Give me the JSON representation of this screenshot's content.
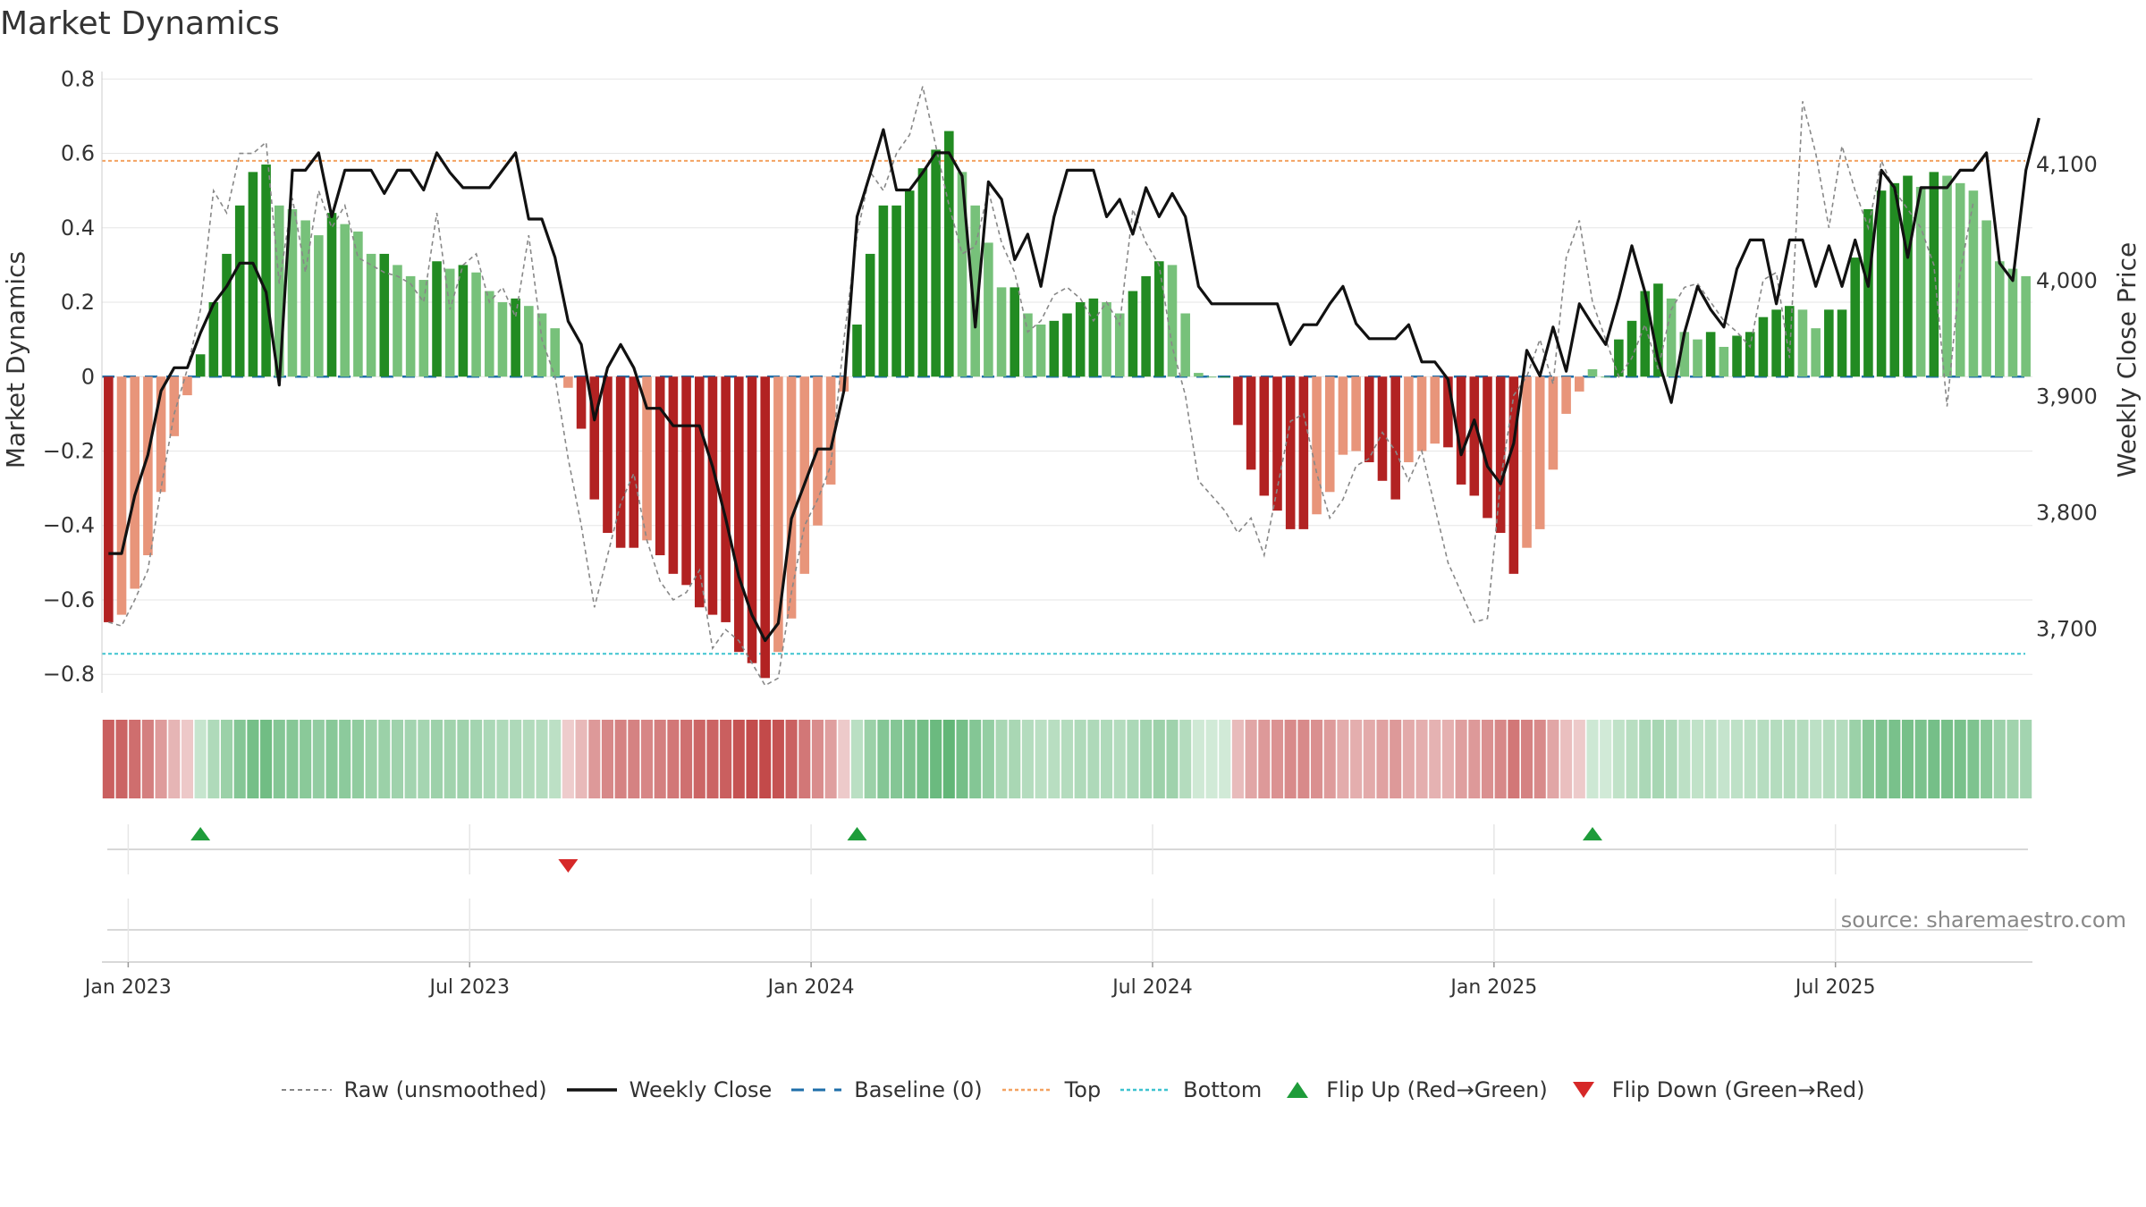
{
  "chart_data": {
    "type": "bar+line",
    "title": "Market Dynamics",
    "ylabel_left": "Market Dynamics",
    "ylabel_right": "Weekly Close Price",
    "ylim_left": [
      -0.85,
      0.82
    ],
    "ylim_right": [
      3645,
      4180
    ],
    "yticks_left": [
      0.8,
      0.6,
      0.4,
      0.2,
      0,
      -0.2,
      -0.4,
      -0.6,
      -0.8
    ],
    "yticks_left_labels": [
      "0.8",
      "0.6",
      "0.4",
      "0.2",
      "0",
      "−0.2",
      "−0.4",
      "−0.6",
      "−0.8"
    ],
    "yticks_right": [
      4100,
      4000,
      3900,
      3800,
      3700
    ],
    "yticks_right_labels": [
      "4,100",
      "4,000",
      "3,900",
      "3,800",
      "3,700"
    ],
    "xticks": [
      {
        "week": 2,
        "label": "Jan 2023"
      },
      {
        "week": 28,
        "label": "Jul 2023"
      },
      {
        "week": 54,
        "label": "Jan 2024"
      },
      {
        "week": 80,
        "label": "Jul 2024"
      },
      {
        "week": 106,
        "label": "Jan 2025"
      },
      {
        "week": 132,
        "label": "Jul 2025"
      }
    ],
    "top_level": 0.58,
    "bottom_level": -0.745,
    "baseline": 0,
    "dynamics": [
      -0.66,
      -0.64,
      -0.57,
      -0.48,
      -0.31,
      -0.16,
      -0.05,
      0.06,
      0.2,
      0.33,
      0.46,
      0.55,
      0.57,
      0.46,
      0.45,
      0.42,
      0.38,
      0.44,
      0.41,
      0.39,
      0.33,
      0.33,
      0.3,
      0.27,
      0.26,
      0.31,
      0.29,
      0.3,
      0.28,
      0.23,
      0.2,
      0.21,
      0.19,
      0.17,
      0.13,
      -0.03,
      -0.14,
      -0.33,
      -0.42,
      -0.46,
      -0.46,
      -0.44,
      -0.48,
      -0.53,
      -0.56,
      -0.62,
      -0.64,
      -0.66,
      -0.74,
      -0.77,
      -0.81,
      -0.74,
      -0.65,
      -0.53,
      -0.4,
      -0.29,
      -0.04,
      0.14,
      0.33,
      0.46,
      0.46,
      0.5,
      0.56,
      0.61,
      0.66,
      0.55,
      0.46,
      0.36,
      0.24,
      0.24,
      0.17,
      0.14,
      0.15,
      0.17,
      0.2,
      0.21,
      0.2,
      0.17,
      0.23,
      0.27,
      0.31,
      0.3,
      0.17,
      0.01,
      0,
      0,
      -0.13,
      -0.25,
      -0.32,
      -0.36,
      -0.41,
      -0.41,
      -0.37,
      -0.31,
      -0.21,
      -0.2,
      -0.23,
      -0.28,
      -0.33,
      -0.23,
      -0.2,
      -0.18,
      -0.19,
      -0.29,
      -0.32,
      -0.38,
      -0.42,
      -0.53,
      -0.46,
      -0.41,
      -0.25,
      -0.1,
      -0.04,
      0.02,
      0,
      0.1,
      0.15,
      0.23,
      0.25,
      0.21,
      0.12,
      0.1,
      0.12,
      0.08,
      0.11,
      0.12,
      0.16,
      0.18,
      0.19,
      0.18,
      0.13,
      0.18,
      0.18,
      0.32,
      0.45,
      0.5,
      0.52,
      0.54,
      0.51,
      0.55,
      0.54,
      0.52,
      0.5,
      0.42,
      0.31,
      0.29,
      0.27
    ],
    "raw": [
      -0.66,
      -0.67,
      -0.6,
      -0.52,
      -0.3,
      -0.1,
      0.02,
      0.18,
      0.5,
      0.44,
      0.6,
      0.6,
      0.63,
      0.25,
      0.48,
      0.28,
      0.5,
      0.4,
      0.46,
      0.32,
      0.3,
      0.28,
      0.27,
      0.25,
      0.2,
      0.44,
      0.18,
      0.3,
      0.33,
      0.2,
      0.24,
      0.16,
      0.38,
      0.1,
      0.0,
      -0.22,
      -0.4,
      -0.62,
      -0.48,
      -0.34,
      -0.26,
      -0.44,
      -0.55,
      -0.6,
      -0.58,
      -0.52,
      -0.73,
      -0.68,
      -0.71,
      -0.77,
      -0.83,
      -0.81,
      -0.58,
      -0.4,
      -0.33,
      -0.24,
      0.1,
      0.38,
      0.55,
      0.5,
      0.6,
      0.65,
      0.78,
      0.62,
      0.46,
      0.33,
      0.35,
      0.5,
      0.36,
      0.28,
      0.12,
      0.15,
      0.22,
      0.24,
      0.21,
      0.15,
      0.2,
      0.14,
      0.45,
      0.36,
      0.3,
      0.08,
      -0.05,
      -0.28,
      -0.32,
      -0.36,
      -0.42,
      -0.38,
      -0.48,
      -0.3,
      -0.12,
      -0.1,
      -0.26,
      -0.38,
      -0.33,
      -0.24,
      -0.22,
      -0.15,
      -0.2,
      -0.28,
      -0.2,
      -0.35,
      -0.5,
      -0.58,
      -0.66,
      -0.65,
      -0.28,
      -0.05,
      0.0,
      0.1,
      -0.02,
      0.32,
      0.42,
      0.2,
      0.1,
      0.0,
      0.05,
      0.14,
      0.02,
      0.18,
      0.24,
      0.25,
      0.2,
      0.15,
      0.12,
      0.08,
      0.26,
      0.28,
      0.05,
      0.74,
      0.6,
      0.4,
      0.62,
      0.5,
      0.4,
      0.58,
      0.5,
      0.45,
      0.4,
      0.3,
      -0.08,
      0.28,
      0.47
    ],
    "close": [
      3765,
      3765,
      3815,
      3850,
      3905,
      3925,
      3925,
      3955,
      3980,
      3995,
      4015,
      4015,
      3990,
      3910,
      4095,
      4095,
      4110,
      4055,
      4095,
      4095,
      4095,
      4075,
      4095,
      4095,
      4078,
      4110,
      4093,
      4080,
      4080,
      4080,
      4095,
      4110,
      4053,
      4053,
      4020,
      3965,
      3945,
      3880,
      3925,
      3945,
      3925,
      3890,
      3890,
      3875,
      3875,
      3875,
      3840,
      3795,
      3745,
      3712,
      3690,
      3705,
      3795,
      3825,
      3855,
      3855,
      3905,
      4055,
      4092,
      4130,
      4078,
      4078,
      4093,
      4110,
      4110,
      4090,
      3960,
      4085,
      4070,
      4018,
      4040,
      3995,
      4055,
      4095,
      4095,
      4095,
      4055,
      4070,
      4040,
      4080,
      4055,
      4075,
      4055,
      3995,
      3980,
      3980,
      3980,
      3980,
      3980,
      3980,
      3945,
      3962,
      3962,
      3980,
      3995,
      3963,
      3950,
      3950,
      3950,
      3962,
      3930,
      3930,
      3915,
      3850,
      3880,
      3840,
      3825,
      3860,
      3940,
      3918,
      3960,
      3922,
      3980,
      3962,
      3945,
      3985,
      4030,
      3990,
      3932,
      3895,
      3955,
      3995,
      3975,
      3960,
      4010,
      4035,
      4035,
      3980,
      4035,
      4035,
      3995,
      4030,
      3995,
      4035,
      3995,
      4095,
      4080,
      4020,
      4080,
      4080,
      4080,
      4095,
      4095,
      4110,
      4015,
      4000,
      4095,
      4140
    ]
  },
  "title": "Market Dynamics",
  "source_text": "source: sharemaestro.com",
  "legend": [
    {
      "key": "raw",
      "label": "Raw (unsmoothed)"
    },
    {
      "key": "close",
      "label": "Weekly Close"
    },
    {
      "key": "baseline",
      "label": "Baseline (0)"
    },
    {
      "key": "top",
      "label": "Top"
    },
    {
      "key": "bottom",
      "label": "Bottom"
    },
    {
      "key": "flip_up",
      "label": "Flip Up (Red→Green)"
    },
    {
      "key": "flip_down",
      "label": "Flip Down (Green→Red)"
    }
  ],
  "colors": {
    "strong_green": "#228b22",
    "light_green": "#77c17a",
    "strong_red": "#b22222",
    "light_red": "#e8957a",
    "close_line": "#111111",
    "raw_line": "#888888",
    "baseline": "#1f6faa",
    "top": "#f4a261",
    "bottom": "#3ec3d0",
    "flip_up": "#1e9c3a",
    "flip_down": "#d62828",
    "grid": "#e6e6e6"
  }
}
